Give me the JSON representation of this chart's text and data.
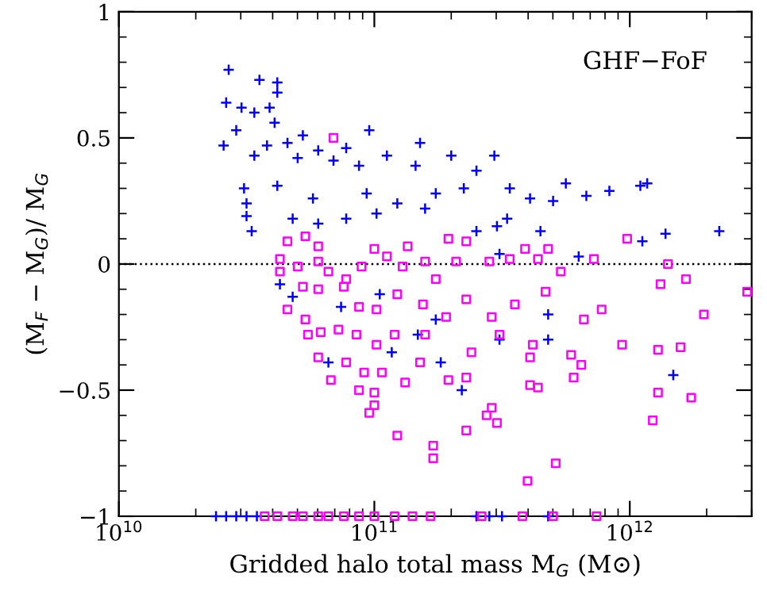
{
  "chart_data": {
    "type": "scatter",
    "xlabel": "Gridded halo total mass M$_{G}$ (M⊙)",
    "ylabel": "(M$_{F}$ − M$_{G}$)/ M$_{G}$",
    "annotations": [
      "GHF−FoF"
    ],
    "log": "x",
    "xlim": [
      10000000000.0,
      3000000000000.0
    ],
    "xticks": [
      {
        "value": 10000000000.0,
        "label": "10$^{10}$"
      },
      {
        "value": 100000000000.0,
        "label": "10$^{11}$"
      },
      {
        "value": 1000000000000.0,
        "label": "10$^{12}$"
      }
    ],
    "ylim": [
      -1,
      1
    ],
    "yticks": [
      {
        "value": -1,
        "label": "−1"
      },
      {
        "value": -0.5,
        "label": "−0.5"
      },
      0,
      0.5,
      1
    ],
    "grid": false,
    "legend": false,
    "ref_lines": [
      {
        "axis": "y",
        "value": 0,
        "line_style": "dotted",
        "color": "#000000"
      }
    ],
    "series": [
      {
        "color": "#0000ff",
        "marker": "cross",
        "x": [
          26900000000.0,
          35500000000.0,
          41700000000.0,
          41700000000.0,
          26300000000.0,
          30200000000.0,
          38900000000.0,
          33900000000.0,
          40700000000.0,
          28800000000.0,
          25700000000.0,
          52500000000.0,
          45700000000.0,
          38000000000.0,
          33900000000.0,
          50100000000.0,
          60300000000.0,
          69200000000.0,
          77600000000.0,
          95500000000.0,
          87100000000.0,
          151000000000.0,
          112000000000.0,
          145000000000.0,
          200000000000.0,
          295000000000.0,
          224000000000.0,
          174000000000.0,
          251000000000.0,
          339000000000.0,
          407000000000.0,
          501000000000.0,
          562000000000.0,
          676000000000.0,
          832000000000.0,
          1100000000000.0,
          1170000000000.0,
          30900000000.0,
          31600000000.0,
          31600000000.0,
          33100000000.0,
          41700000000.0,
          47900000000.0,
          60300000000.0,
          77600000000.0,
          102000000000.0,
          123000000000.0,
          158000000000.0,
          57500000000.0,
          93300000000.0,
          251000000000.0,
          302000000000.0,
          331000000000.0,
          447000000000.0,
          1380000000000.0,
          1120000000000.0,
          2240000000000.0,
          631000000000.0,
          309000000000.0,
          42700000000.0,
          74100000000.0,
          105000000000.0,
          174000000000.0,
          148000000000.0,
          117000000000.0,
          309000000000.0,
          479000000000.0,
          479000000000.0,
          66100000000.0,
          182000000000.0,
          220000000000.0,
          1480000000000.0,
          47900000000.0,
          24000000000.0,
          26300000000.0,
          28800000000.0,
          31600000000.0,
          34700000000.0,
          251000000000.0,
          282000000000.0,
          316000000000.0,
          479000000000.0
        ],
        "values": [
          0.77,
          0.73,
          0.72,
          0.68,
          0.64,
          0.62,
          0.62,
          0.6,
          0.56,
          0.53,
          0.47,
          0.51,
          0.48,
          0.47,
          0.43,
          0.42,
          0.45,
          0.41,
          0.46,
          0.53,
          0.39,
          0.48,
          0.43,
          0.39,
          0.43,
          0.43,
          0.3,
          0.28,
          0.37,
          0.3,
          0.26,
          0.25,
          0.32,
          0.27,
          0.29,
          0.31,
          0.32,
          0.3,
          0.24,
          0.19,
          0.13,
          0.31,
          0.18,
          0.16,
          0.18,
          0.2,
          0.24,
          0.22,
          0.26,
          0.28,
          0.13,
          0.15,
          0.18,
          0.13,
          0.12,
          0.09,
          0.13,
          0.03,
          0.04,
          -0.08,
          -0.17,
          -0.12,
          -0.22,
          -0.28,
          -0.35,
          -0.3,
          -0.2,
          -0.3,
          -0.39,
          -0.39,
          -0.5,
          -0.44,
          -0.13,
          -1,
          -1,
          -1,
          -1,
          -1,
          -1,
          -1,
          -1,
          -1
        ]
      },
      {
        "color": "#ff00ff",
        "marker": "square",
        "x": [
          69200000000.0,
          45700000000.0,
          53700000000.0,
          60300000000.0,
          42700000000.0,
          42700000000.0,
          50100000000.0,
          60300000000.0,
          66100000000.0,
          77600000000.0,
          89100000000.0,
          100000000000.0,
          112000000000.0,
          129000000000.0,
          135000000000.0,
          158000000000.0,
          174000000000.0,
          195000000000.0,
          209000000000.0,
          229000000000.0,
          282000000000.0,
          339000000000.0,
          389000000000.0,
          437000000000.0,
          479000000000.0,
          537000000000.0,
          724000000000.0,
          977000000000.0,
          1410000000000.0,
          1320000000000.0,
          1660000000000.0,
          2880000000000.0,
          1950000000000.0,
          776000000000.0,
          661000000000.0,
          468000000000.0,
          355000000000.0,
          288000000000.0,
          229000000000.0,
          191000000000.0,
          155000000000.0,
          123000000000.0,
          102000000000.0,
          87100000000.0,
          75900000000.0,
          60300000000.0,
          52500000000.0,
          45700000000.0,
          53700000000.0,
          61700000000.0,
          55000000000.0,
          72400000000.0,
          85100000000.0,
          102000000000.0,
          120000000000.0,
          158000000000.0,
          309000000000.0,
          240000000000.0,
          417000000000.0,
          589000000000.0,
          933000000000.0,
          1290000000000.0,
          1580000000000.0,
          60300000000.0,
          77600000000.0,
          91200000000.0,
          67600000000.0,
          107000000000.0,
          132000000000.0,
          151000000000.0,
          195000000000.0,
          229000000000.0,
          407000000000.0,
          646000000000.0,
          603000000000.0,
          407000000000.0,
          437000000000.0,
          87100000000.0,
          100000000000.0,
          100000000000.0,
          95500000000.0,
          288000000000.0,
          275000000000.0,
          302000000000.0,
          229000000000.0,
          123000000000.0,
          170000000000.0,
          170000000000.0,
          513000000000.0,
          398000000000.0,
          1290000000000.0,
          1740000000000.0,
          1230000000000.0,
          37200000000.0,
          41700000000.0,
          47900000000.0,
          52500000000.0,
          60300000000.0,
          66100000000.0,
          75900000000.0,
          87100000000.0,
          100000000000.0,
          120000000000.0,
          141000000000.0,
          166000000000.0,
          263000000000.0,
          380000000000.0,
          501000000000.0,
          741000000000.0
        ],
        "values": [
          0.5,
          0.09,
          0.11,
          0.07,
          0.02,
          -0.03,
          -0.01,
          0.01,
          -0.03,
          -0.06,
          -0.01,
          0.06,
          0.03,
          -0.01,
          0.07,
          0.01,
          -0.06,
          0.1,
          0.01,
          0.09,
          0.01,
          0.02,
          0.06,
          0.02,
          0.06,
          -0.03,
          0.02,
          0.1,
          0.0,
          -0.08,
          -0.06,
          -0.11,
          -0.2,
          -0.18,
          -0.22,
          -0.11,
          -0.16,
          -0.21,
          -0.14,
          -0.21,
          -0.16,
          -0.12,
          -0.18,
          -0.17,
          -0.09,
          -0.1,
          -0.09,
          -0.18,
          -0.22,
          -0.27,
          -0.28,
          -0.26,
          -0.28,
          -0.32,
          -0.28,
          -0.28,
          -0.28,
          -0.35,
          -0.32,
          -0.36,
          -0.32,
          -0.34,
          -0.33,
          -0.37,
          -0.39,
          -0.43,
          -0.46,
          -0.43,
          -0.47,
          -0.39,
          -0.46,
          -0.45,
          -0.37,
          -0.4,
          -0.45,
          -0.48,
          -0.49,
          -0.5,
          -0.51,
          -0.56,
          -0.59,
          -0.57,
          -0.6,
          -0.63,
          -0.66,
          -0.68,
          -0.72,
          -0.77,
          -0.79,
          -0.86,
          -0.51,
          -0.53,
          -0.62,
          -1,
          -1,
          -1,
          -1,
          -1,
          -1,
          -1,
          -1,
          -1,
          -1,
          -1,
          -1,
          -1,
          -1,
          -1,
          -1
        ]
      }
    ]
  }
}
